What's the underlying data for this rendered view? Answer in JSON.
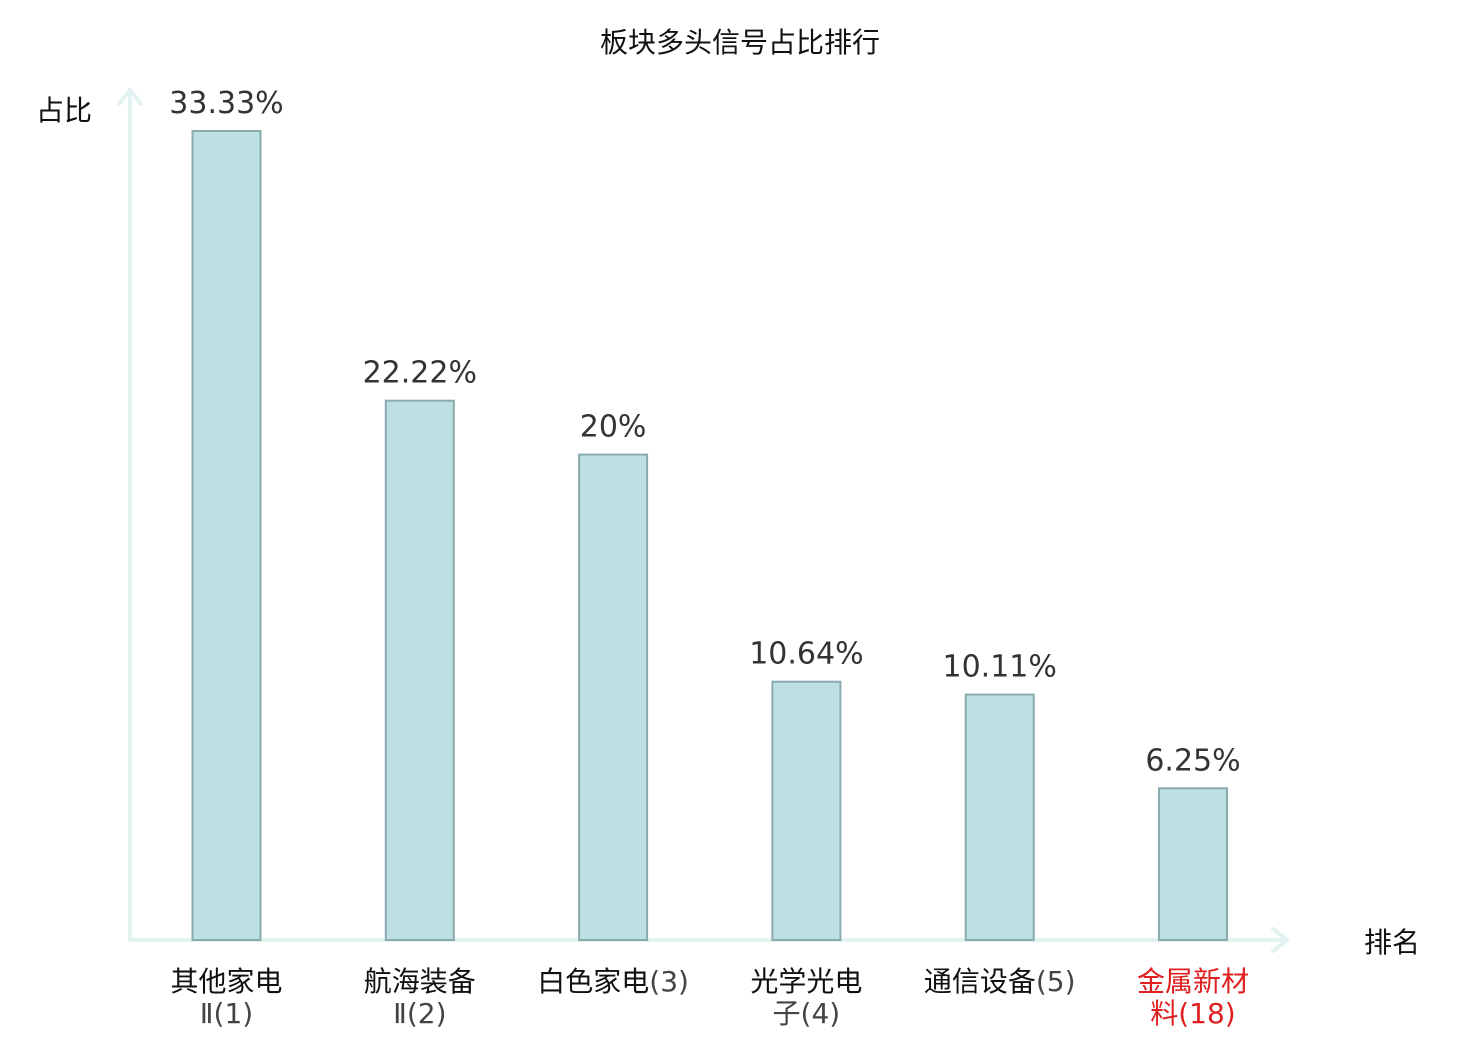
{
  "chart_data": {
    "type": "bar",
    "title": "板块多头信号占比排行",
    "ylabel": "占比",
    "xlabel": "排名",
    "ylim": [
      0,
      35
    ],
    "grid": false,
    "legend": "none",
    "categories": [
      {
        "name": "其他家电",
        "rank": "Ⅱ(1)",
        "highlight": false
      },
      {
        "name": "航海装备",
        "rank": "Ⅱ(2)",
        "highlight": false
      },
      {
        "name": "白色家电",
        "rank": "(3)",
        "highlight": false
      },
      {
        "name": "光学光电",
        "rank": "子(4)",
        "highlight": false
      },
      {
        "name": "通信设备",
        "rank": "(5)",
        "highlight": false
      },
      {
        "name": "金属新材",
        "rank": "料(18)",
        "highlight": true
      }
    ],
    "values": [
      33.33,
      22.22,
      20,
      10.64,
      10.11,
      6.25
    ],
    "value_labels": [
      "33.33%",
      "22.22%",
      "20%",
      "10.64%",
      "10.11%",
      "6.25%"
    ],
    "colors": {
      "bar_fill": "#bde0e3",
      "bar_stroke": "#8aabae",
      "axis": "#e3f3f1",
      "value_text": "#333333",
      "highlight": "#e02020"
    }
  }
}
